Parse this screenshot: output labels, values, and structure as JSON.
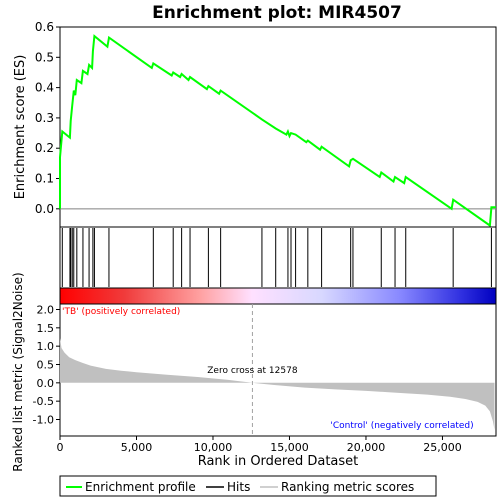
{
  "chart_data": {
    "type": "line",
    "title": "Enrichment plot: MIR4507",
    "es_panel": {
      "ylabel": "Enrichment score (ES)",
      "ylim": [
        -0.06,
        0.6
      ],
      "yticks": [
        0.0,
        0.1,
        0.2,
        0.3,
        0.4,
        0.5,
        0.6
      ],
      "ytick_labels": [
        "0.0",
        "0.1",
        "0.2",
        "0.3",
        "0.4",
        "0.5",
        "0.6"
      ],
      "line_color": "#00ff00",
      "es_profile": [
        [
          0,
          0.0
        ],
        [
          0,
          0.17
        ],
        [
          150,
          0.255
        ],
        [
          650,
          0.235
        ],
        [
          700,
          0.29
        ],
        [
          800,
          0.34
        ],
        [
          900,
          0.39
        ],
        [
          1000,
          0.375
        ],
        [
          1100,
          0.425
        ],
        [
          1400,
          0.415
        ],
        [
          1500,
          0.455
        ],
        [
          1800,
          0.445
        ],
        [
          1900,
          0.475
        ],
        [
          2100,
          0.465
        ],
        [
          2150,
          0.52
        ],
        [
          2250,
          0.57
        ],
        [
          3100,
          0.535
        ],
        [
          3200,
          0.565
        ],
        [
          6000,
          0.465
        ],
        [
          6100,
          0.48
        ],
        [
          7300,
          0.44
        ],
        [
          7400,
          0.45
        ],
        [
          7850,
          0.435
        ],
        [
          7950,
          0.445
        ],
        [
          8400,
          0.425
        ],
        [
          8500,
          0.435
        ],
        [
          9600,
          0.395
        ],
        [
          9700,
          0.405
        ],
        [
          10400,
          0.38
        ],
        [
          10500,
          0.39
        ],
        [
          13200,
          0.295
        ],
        [
          14100,
          0.265
        ],
        [
          14800,
          0.245
        ],
        [
          14900,
          0.255
        ],
        [
          15000,
          0.24
        ],
        [
          15100,
          0.25
        ],
        [
          15400,
          0.245
        ],
        [
          16100,
          0.22
        ],
        [
          16200,
          0.225
        ],
        [
          17000,
          0.195
        ],
        [
          17100,
          0.205
        ],
        [
          18900,
          0.14
        ],
        [
          19000,
          0.16
        ],
        [
          19150,
          0.165
        ],
        [
          20900,
          0.105
        ],
        [
          21000,
          0.12
        ],
        [
          21800,
          0.09
        ],
        [
          21900,
          0.105
        ],
        [
          22500,
          0.085
        ],
        [
          22600,
          0.105
        ],
        [
          25600,
          0.0
        ],
        [
          25700,
          0.03
        ],
        [
          28100,
          -0.055
        ],
        [
          28200,
          0.005
        ],
        [
          28500,
          0.005
        ]
      ]
    },
    "hits_panel": {
      "hit_ranks": [
        150,
        650,
        700,
        800,
        900,
        1100,
        1500,
        1900,
        2150,
        2250,
        3200,
        6100,
        7400,
        7950,
        8500,
        9700,
        10500,
        13200,
        14100,
        14900,
        15100,
        15400,
        16200,
        17100,
        19000,
        19150,
        21000,
        21900,
        22600,
        25700,
        28200
      ]
    },
    "rank_panel": {
      "ylabel": "Ranked list metric (Signal2Noise)",
      "ylim": [
        -1.45,
        2.15
      ],
      "yticks": [
        -1.0,
        -0.5,
        0.0,
        0.5,
        1.0,
        1.5,
        2.0
      ],
      "ytick_labels": [
        "-1.0",
        "-0.5",
        "0.0",
        "0.5",
        "1.0",
        "1.5",
        "2.0"
      ],
      "positive_label": "'TB' (positively correlated)",
      "negative_label": "'Control' (negatively correlated)",
      "positive_color": "#ff0000",
      "negative_color": "#0000ff",
      "zero_cross_label": "Zero cross at 12578",
      "zero_cross": 12578,
      "metric_curve": [
        [
          0,
          1.22
        ],
        [
          100,
          0.95
        ],
        [
          300,
          0.82
        ],
        [
          600,
          0.7
        ],
        [
          1000,
          0.62
        ],
        [
          1500,
          0.54
        ],
        [
          2000,
          0.47
        ],
        [
          3000,
          0.38
        ],
        [
          4000,
          0.33
        ],
        [
          5000,
          0.29
        ],
        [
          7000,
          0.22
        ],
        [
          9000,
          0.16
        ],
        [
          11000,
          0.08
        ],
        [
          12578,
          0.0
        ],
        [
          14000,
          -0.06
        ],
        [
          16000,
          -0.13
        ],
        [
          18000,
          -0.18
        ],
        [
          20000,
          -0.22
        ],
        [
          22000,
          -0.27
        ],
        [
          24000,
          -0.32
        ],
        [
          25500,
          -0.38
        ],
        [
          26500,
          -0.44
        ],
        [
          27300,
          -0.52
        ],
        [
          27800,
          -0.62
        ],
        [
          28100,
          -0.78
        ],
        [
          28300,
          -1.05
        ],
        [
          28400,
          -1.28
        ],
        [
          28400,
          0
        ]
      ]
    },
    "xaxis": {
      "xlabel": "Rank in Ordered Dataset",
      "xlim": [
        0,
        28500
      ],
      "xticks": [
        0,
        5000,
        10000,
        15000,
        20000,
        25000
      ],
      "xtick_labels": [
        "0",
        "5,000",
        "10,000",
        "15,000",
        "20,000",
        "25,000"
      ]
    },
    "legend": {
      "placement": "bottom",
      "entries": [
        {
          "label": "Enrichment profile",
          "color": "#00ff00"
        },
        {
          "label": "Hits",
          "color": "#000000"
        },
        {
          "label": "Ranking metric scores",
          "color": "#c0c0c0"
        }
      ]
    }
  }
}
